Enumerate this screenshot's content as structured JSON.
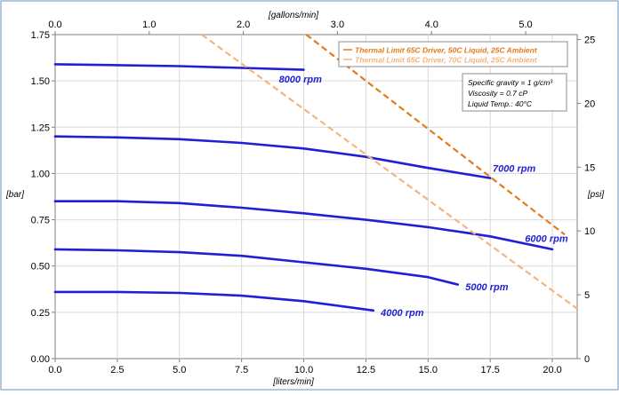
{
  "chart_data": {
    "type": "line",
    "xlabel": "[liters/min]",
    "x2label": "[gallons/min]",
    "ylabel": "[bar]",
    "y2label": "[psi]",
    "xlim": [
      0,
      21
    ],
    "ylim": [
      0,
      1.75
    ],
    "x2lim": [
      0,
      5.5479
    ],
    "y2lim": [
      0,
      25.382
    ],
    "x_ticks": [
      "0.0",
      "2.5",
      "5.0",
      "7.5",
      "10.0",
      "12.5",
      "15.0",
      "17.5",
      "20.0"
    ],
    "x_tick_values": [
      0,
      2.5,
      5,
      7.5,
      10,
      12.5,
      15,
      17.5,
      20
    ],
    "y_ticks": [
      "0.00",
      "0.25",
      "0.50",
      "0.75",
      "1.00",
      "1.25",
      "1.50",
      "1.75"
    ],
    "y_tick_values": [
      0,
      0.25,
      0.5,
      0.75,
      1.0,
      1.25,
      1.5,
      1.75
    ],
    "x2_ticks": [
      "0.0",
      "1.0",
      "2.0",
      "3.0",
      "4.0",
      "5.0"
    ],
    "x2_tick_values": [
      0,
      1,
      2,
      3,
      4,
      5
    ],
    "y2_ticks": [
      "0",
      "5",
      "10",
      "15",
      "20",
      "25"
    ],
    "y2_tick_values": [
      0,
      5,
      10,
      15,
      20,
      25
    ],
    "grid": true,
    "legend_position": "top-right",
    "series": [
      {
        "name": "8000 rpm",
        "color": "#1f1fd6",
        "x": [
          0,
          2.5,
          5,
          7.5,
          10
        ],
        "y": [
          1.59,
          1.585,
          1.58,
          1.57,
          1.56
        ]
      },
      {
        "name": "7000 rpm",
        "color": "#1f1fd6",
        "x": [
          0,
          2.5,
          5,
          7.5,
          10,
          12.5,
          15,
          17.5
        ],
        "y": [
          1.2,
          1.195,
          1.185,
          1.165,
          1.135,
          1.09,
          1.03,
          0.975
        ]
      },
      {
        "name": "6000 rpm",
        "color": "#1f1fd6",
        "x": [
          0,
          2.5,
          5,
          7.5,
          10,
          12.5,
          15,
          17.5,
          20
        ],
        "y": [
          0.85,
          0.85,
          0.84,
          0.815,
          0.785,
          0.75,
          0.71,
          0.66,
          0.59
        ]
      },
      {
        "name": "5000 rpm",
        "color": "#1f1fd6",
        "x": [
          0,
          2.5,
          5,
          7.5,
          10,
          12.5,
          15,
          16.2
        ],
        "y": [
          0.59,
          0.585,
          0.575,
          0.555,
          0.52,
          0.485,
          0.44,
          0.4
        ]
      },
      {
        "name": "4000 rpm",
        "color": "#1f1fd6",
        "x": [
          0,
          2.5,
          5,
          7.5,
          10,
          12.8
        ],
        "y": [
          0.36,
          0.36,
          0.355,
          0.34,
          0.31,
          0.26
        ]
      },
      {
        "name": "Thermal Limit 65C Driver, 50C Liquid, 25C Ambient",
        "color": "#e07b1e",
        "style": "dashed",
        "x": [
          10.1,
          20.5
        ],
        "y": [
          1.75,
          0.67
        ]
      },
      {
        "name": "Thermal Limit 65C Driver, 70C Liquid, 25C Ambient",
        "color": "#f5b47a",
        "style": "dashed",
        "x": [
          5.9,
          21
        ],
        "y": [
          1.75,
          0.27
        ]
      }
    ],
    "annotations": [
      {
        "text": "8000 rpm",
        "x": 9.0,
        "y": 1.49
      },
      {
        "text": "7000 rpm",
        "x": 17.6,
        "y": 1.01
      },
      {
        "text": "6000 rpm",
        "x": 18.9,
        "y": 0.63
      },
      {
        "text": "5000 rpm",
        "x": 16.5,
        "y": 0.37
      },
      {
        "text": "4000 rpm",
        "x": 13.1,
        "y": 0.23
      }
    ],
    "info_box": {
      "lines": [
        "Specific gravity = 1 g/cm³",
        "Viscosity = 0.7 cP",
        "Liquid Temp.: 40°C"
      ]
    }
  }
}
